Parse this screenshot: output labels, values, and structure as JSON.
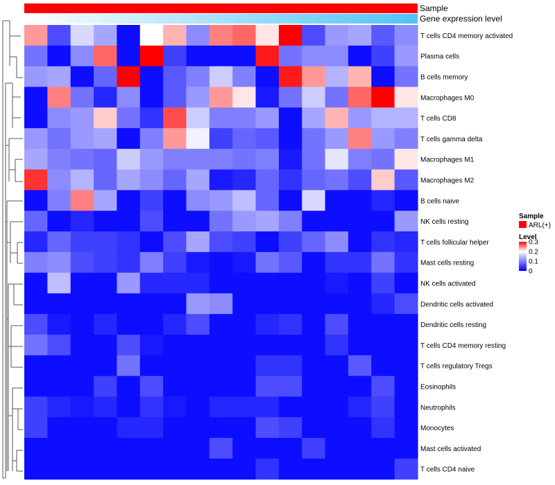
{
  "chart_data": {
    "type": "heatmap",
    "annotation_tracks": [
      {
        "name": "Sample",
        "color": "#ff0000"
      },
      {
        "name": "Gene expression level",
        "gradient": [
          "#ffffff",
          "#4fc3f7"
        ]
      }
    ],
    "rows": [
      "T cells CD4 memory activated",
      "Plasma cells",
      "B cells memory",
      "Macrophages M0",
      "T cells CD8",
      "T cells gamma delta",
      "Macrophages M1",
      "Macrophages M2",
      "B cells naive",
      "NK cells resting",
      "T cells follicular helper",
      "Mast cells resting",
      "NK cells activated",
      "Dendritic cells activated",
      "Dendritic cells resting",
      "T cells CD4 memory resting",
      "T cells regulatory  Tregs",
      "Eosinophils",
      "Neutrophils",
      "Monocytes",
      "Mast cells activated",
      "T cells CD4 naive"
    ],
    "n_columns": 17,
    "values": [
      [
        0.24,
        0.06,
        0.17,
        0.13,
        0.01,
        0.2,
        0.23,
        0.11,
        0.25,
        0.26,
        0.21,
        0.3,
        0.06,
        0.12,
        0.13,
        0.07,
        0.11
      ],
      [
        0.09,
        0.01,
        0.11,
        0.26,
        0.01,
        0.3,
        0.05,
        0.01,
        0.01,
        0.01,
        0.29,
        0.09,
        0.11,
        0.11,
        0.01,
        0.05,
        0.12
      ],
      [
        0.12,
        0.13,
        0.01,
        0.08,
        0.3,
        0.01,
        0.07,
        0.1,
        0.16,
        0.1,
        0.01,
        0.29,
        0.24,
        0.14,
        0.23,
        0.01,
        0.09
      ],
      [
        0.01,
        0.25,
        0.09,
        0.03,
        0.11,
        0.01,
        0.07,
        0.12,
        0.24,
        0.21,
        0.02,
        0.09,
        0.16,
        0.09,
        0.26,
        0.3,
        0.21
      ],
      [
        0.01,
        0.11,
        0.12,
        0.22,
        0.09,
        0.04,
        0.27,
        0.16,
        0.1,
        0.1,
        0.12,
        0.01,
        0.13,
        0.23,
        0.12,
        0.14,
        0.14
      ],
      [
        0.12,
        0.09,
        0.12,
        0.13,
        0.01,
        0.1,
        0.24,
        0.19,
        0.05,
        0.08,
        0.07,
        0.01,
        0.09,
        0.12,
        0.25,
        0.12,
        0.1
      ],
      [
        0.13,
        0.1,
        0.09,
        0.08,
        0.16,
        0.12,
        0.1,
        0.1,
        0.1,
        0.09,
        0.1,
        0.02,
        0.09,
        0.18,
        0.1,
        0.09,
        0.21
      ],
      [
        0.28,
        0.11,
        0.14,
        0.08,
        0.13,
        0.11,
        0.08,
        0.13,
        0.02,
        0.03,
        0.08,
        0.04,
        0.08,
        0.09,
        0.06,
        0.22,
        0.07
      ],
      [
        0.01,
        0.1,
        0.25,
        0.13,
        0.01,
        0.05,
        0.01,
        0.11,
        0.12,
        0.15,
        0.08,
        0.01,
        0.17,
        0.01,
        0.01,
        0.03,
        0.01
      ],
      [
        0.08,
        0.01,
        0.03,
        0.01,
        0.01,
        0.06,
        0.01,
        0.01,
        0.09,
        0.12,
        0.13,
        0.1,
        0.01,
        0.01,
        0.01,
        0.01,
        0.12
      ],
      [
        0.03,
        0.08,
        0.05,
        0.05,
        0.04,
        0.01,
        0.06,
        0.13,
        0.06,
        0.05,
        0.01,
        0.05,
        0.08,
        0.11,
        0.01,
        0.04,
        0.03
      ],
      [
        0.1,
        0.11,
        0.06,
        0.05,
        0.04,
        0.1,
        0.05,
        0.02,
        0.01,
        0.02,
        0.09,
        0.07,
        0.01,
        0.04,
        0.04,
        0.09,
        0.04
      ],
      [
        0.01,
        0.15,
        0.01,
        0.01,
        0.12,
        0.03,
        0.03,
        0.03,
        0.01,
        0.01,
        0.01,
        0.01,
        0.01,
        0.02,
        0.01,
        0.05,
        0.01
      ],
      [
        0.01,
        0.01,
        0.01,
        0.01,
        0.01,
        0.01,
        0.01,
        0.12,
        0.11,
        0.01,
        0.01,
        0.01,
        0.01,
        0.01,
        0.01,
        0.03,
        0.06
      ],
      [
        0.06,
        0.02,
        0.01,
        0.03,
        0.01,
        0.01,
        0.03,
        0.06,
        0.01,
        0.01,
        0.03,
        0.04,
        0.01,
        0.06,
        0.01,
        0.01,
        0.01
      ],
      [
        0.09,
        0.06,
        0.01,
        0.01,
        0.06,
        0.02,
        0.01,
        0.01,
        0.01,
        0.01,
        0.01,
        0.01,
        0.01,
        0.04,
        0.01,
        0.01,
        0.01
      ],
      [
        0.01,
        0.01,
        0.01,
        0.01,
        0.09,
        0.01,
        0.01,
        0.01,
        0.01,
        0.01,
        0.04,
        0.04,
        0.01,
        0.01,
        0.07,
        0.01,
        0.01
      ],
      [
        0.01,
        0.01,
        0.01,
        0.05,
        0.01,
        0.06,
        0.01,
        0.01,
        0.01,
        0.01,
        0.06,
        0.06,
        0.01,
        0.01,
        0.01,
        0.06,
        0.01
      ],
      [
        0.05,
        0.03,
        0.02,
        0.03,
        0.01,
        0.04,
        0.02,
        0.01,
        0.03,
        0.03,
        0.03,
        0.01,
        0.01,
        0.01,
        0.03,
        0.05,
        0.01
      ],
      [
        0.05,
        0.01,
        0.01,
        0.01,
        0.03,
        0.03,
        0.01,
        0.01,
        0.01,
        0.01,
        0.06,
        0.05,
        0.01,
        0.01,
        0.01,
        0.04,
        0.01
      ],
      [
        0.01,
        0.01,
        0.01,
        0.01,
        0.01,
        0.01,
        0.01,
        0.01,
        0.06,
        0.01,
        0.01,
        0.01,
        0.05,
        0.01,
        0.01,
        0.01,
        0.01
      ],
      [
        0.01,
        0.01,
        0.01,
        0.01,
        0.01,
        0.01,
        0.01,
        0.01,
        0.01,
        0.01,
        0.04,
        0.01,
        0.01,
        0.01,
        0.01,
        0.01,
        0.05
      ]
    ],
    "color_scale": {
      "min": 0,
      "mid": 0.2,
      "max": 0.3,
      "colors": [
        "#0000ff",
        "#ffffff",
        "#ff0000"
      ]
    },
    "legend": {
      "sample_title": "Sample",
      "sample_entry": "ARL(+)",
      "level_title": "Level",
      "level_ticks": [
        "0.3",
        "0.2",
        "0.1",
        "0"
      ],
      "level_tick_values": [
        0.3,
        0.2,
        0.1,
        0
      ],
      "position": "right"
    },
    "dendrogram": "left"
  }
}
